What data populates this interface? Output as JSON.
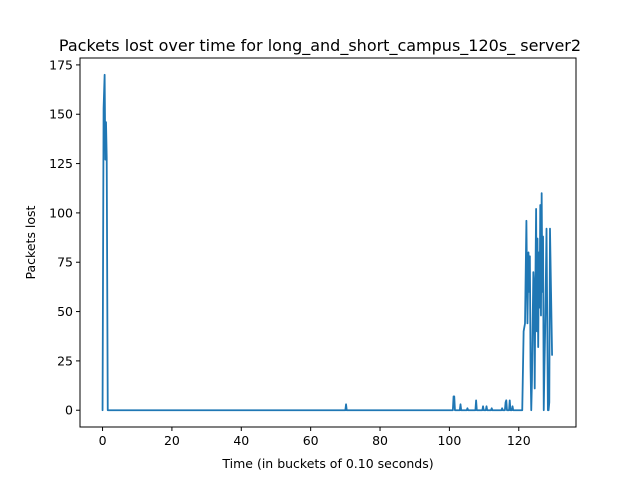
{
  "chart_data": {
    "type": "line",
    "title": "Packets lost over time for long_and_short_campus_120s_ server2",
    "xlabel": "Time (in buckets of 0.10 seconds)",
    "ylabel": "Packets lost",
    "xlim": [
      -6.5,
      136.5
    ],
    "ylim": [
      -8.5,
      178.5
    ],
    "xticks": [
      0,
      20,
      40,
      60,
      80,
      100,
      120
    ],
    "yticks": [
      0,
      25,
      50,
      75,
      100,
      125,
      150,
      175
    ],
    "grid": false,
    "legend": "none",
    "colors": {
      "series": "#1f77b4"
    },
    "series": [
      {
        "x": [
          0,
          0.3,
          0.6,
          0.8,
          1.0,
          1.2,
          1.5,
          1.7,
          70,
          70.2,
          70.4,
          101,
          101.2,
          101.4,
          101.6,
          103,
          103.2,
          103.4,
          105,
          105.2,
          105.4,
          107.5,
          107.7,
          107.9,
          109.5,
          109.7,
          109.9,
          110.5,
          110.7,
          110.9,
          112,
          112.2,
          112.4,
          115,
          115.2,
          115.4,
          116,
          116.2,
          116.4,
          116.6,
          117.2,
          117.4,
          117.6,
          118,
          118.2,
          118.4,
          121,
          121.4,
          121.8,
          122.2,
          122.5,
          122.8,
          123.0,
          123.2,
          123.4,
          123.6,
          123.8,
          124.0,
          124.2,
          124.4,
          124.6,
          124.8,
          125.0,
          125.2,
          125.4,
          125.6,
          125.8,
          126.0,
          126.2,
          126.4,
          126.6,
          126.8,
          127.0,
          127.2,
          127.4,
          127.6,
          127.8,
          128.0,
          128.2,
          128.4,
          128.6,
          128.8,
          129.0,
          129.3,
          129.6
        ],
        "y": [
          0,
          153,
          170,
          127,
          146,
          128,
          0,
          0,
          0,
          3,
          0,
          0,
          7,
          7,
          0,
          0,
          3,
          0,
          0,
          1,
          0,
          0,
          5,
          0,
          0,
          2,
          0,
          0,
          2,
          0,
          0,
          1,
          0,
          0,
          1,
          0,
          0,
          4,
          5,
          0,
          0,
          5,
          0,
          0,
          2,
          0,
          0,
          40,
          44,
          96,
          44,
          80,
          60,
          78,
          22,
          0,
          15,
          43,
          70,
          62,
          11,
          66,
          102,
          40,
          87,
          32,
          80,
          52,
          104,
          48,
          110,
          60,
          88,
          0,
          22,
          40,
          65,
          92,
          48,
          0,
          0,
          4,
          92,
          60,
          28
        ]
      }
    ]
  }
}
